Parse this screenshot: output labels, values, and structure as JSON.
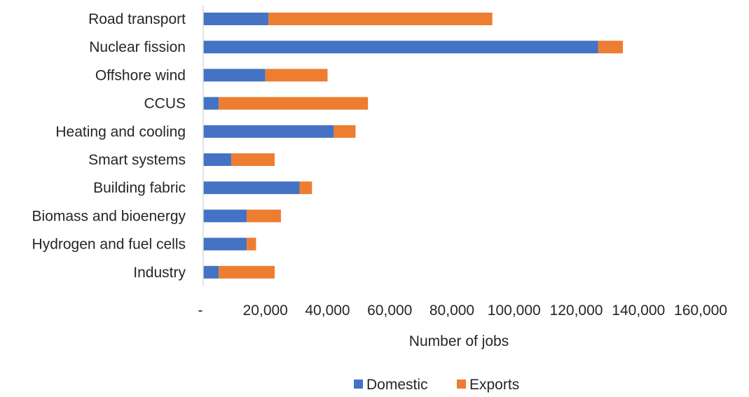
{
  "chart_data": {
    "type": "bar",
    "orientation": "horizontal",
    "stacked": true,
    "categories": [
      "Road transport",
      "Nuclear fission",
      "Offshore wind",
      "CCUS",
      "Heating and cooling",
      "Smart systems",
      "Building fabric",
      "Biomass and bioenergy",
      "Hydrogen and fuel cells",
      "Industry"
    ],
    "series": [
      {
        "name": "Domestic",
        "color": "#4472C4",
        "values": [
          21000,
          127000,
          20000,
          5000,
          42000,
          9000,
          31000,
          14000,
          14000,
          5000
        ]
      },
      {
        "name": "Exports",
        "color": "#ED7D31",
        "values": [
          72000,
          8000,
          20000,
          48000,
          7000,
          14000,
          4000,
          11000,
          3000,
          18000
        ]
      }
    ],
    "xlabel": "Number of jobs",
    "ylabel": "",
    "xlim": [
      0,
      160000
    ],
    "x_ticks": [
      0,
      20000,
      40000,
      60000,
      80000,
      100000,
      120000,
      140000,
      160000
    ],
    "x_tick_labels": [
      "-",
      "20,000",
      "40,000",
      "60,000",
      "80,000",
      "100,000",
      "120,000",
      "140,000",
      "160,000"
    ],
    "grid": false,
    "legend_position": "bottom"
  }
}
